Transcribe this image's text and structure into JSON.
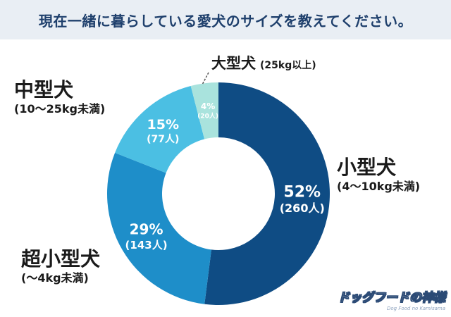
{
  "header": {
    "title": "現在一緒に暮らしている愛犬のサイズを教えてください。"
  },
  "chart_data": {
    "type": "pie",
    "donut": true,
    "slices": [
      {
        "name": "小型犬",
        "range": "(4〜10kg未満)",
        "percent": 52,
        "percent_label": "52%",
        "count_label": "(260人)",
        "color": "#0f4c84"
      },
      {
        "name": "超小型犬",
        "range": "(〜4kg未満)",
        "percent": 29,
        "percent_label": "29%",
        "count_label": "(143人)",
        "color": "#1e8ec9"
      },
      {
        "name": "中型犬",
        "range": "(10〜25kg未満)",
        "percent": 15,
        "percent_label": "15%",
        "count_label": "(77人)",
        "color": "#4bbfe3"
      },
      {
        "name": "大型犬",
        "range": "(25kg以上)",
        "percent": 4,
        "percent_label": "4%",
        "count_label": "(20人)",
        "color": "#a9e3dd"
      }
    ]
  },
  "logo": {
    "main": "ドッグフードの神様",
    "sub": "Dog Food no Kamisama"
  }
}
